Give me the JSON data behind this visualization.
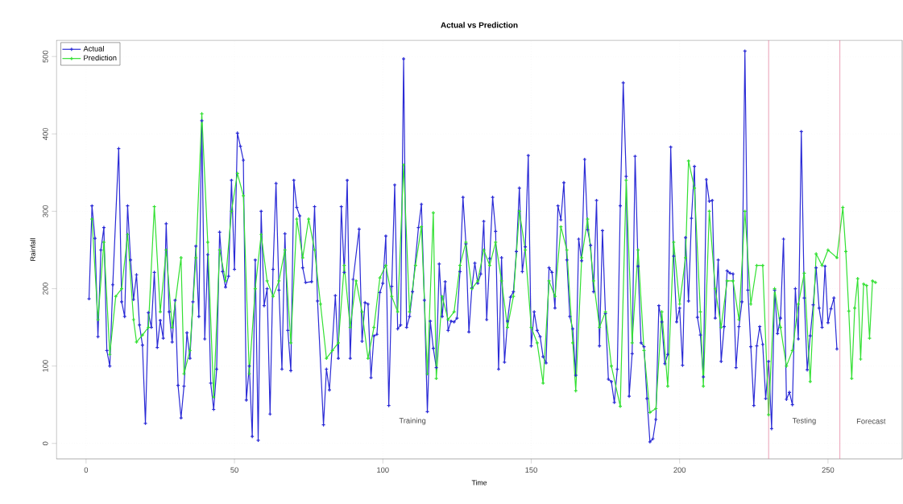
{
  "chart_data": {
    "type": "line",
    "title": "Actual vs Prediction",
    "xlabel": "Time",
    "ylabel": "Rainfall",
    "xlim": [
      -10,
      275
    ],
    "ylim": [
      -20,
      521
    ],
    "xticks": [
      0,
      50,
      100,
      150,
      200,
      250
    ],
    "yticks": [
      0,
      100,
      200,
      300,
      400,
      500
    ],
    "grid": true,
    "legend": "top left",
    "marker": "cross",
    "line_style": "solid",
    "ref_lines": [
      {
        "axis": "x",
        "value": 230,
        "label": null,
        "color": "#e07090"
      },
      {
        "axis": "x",
        "value": 254,
        "label": null,
        "color": "#e07090"
      }
    ],
    "annotations": [
      "Training",
      "Testing",
      "Forecast"
    ],
    "series": [
      {
        "name": "Actual",
        "color": "#2b2bd6",
        "x": [
          1,
          2,
          3,
          4,
          5,
          6,
          7,
          8,
          9,
          11,
          12,
          13,
          14,
          15,
          16,
          17,
          18,
          19,
          20,
          21,
          22,
          23,
          24,
          25,
          26,
          27,
          28,
          29,
          30,
          31,
          32,
          33,
          34,
          35,
          36,
          37,
          38,
          39,
          40,
          41,
          42,
          43,
          44,
          45,
          46,
          47,
          48,
          49,
          50,
          51,
          52,
          53,
          54,
          55,
          56,
          57,
          58,
          59,
          60,
          61,
          62,
          63,
          64,
          65,
          66,
          67,
          68,
          69,
          70,
          71,
          72,
          73,
          74,
          76,
          77,
          78,
          80,
          81,
          82,
          84,
          85,
          86,
          87,
          88,
          89,
          90,
          92,
          93,
          94,
          95,
          96,
          97,
          98,
          99,
          100,
          101,
          102,
          103,
          104,
          105,
          106,
          107,
          108,
          109,
          110,
          112,
          113,
          114,
          115,
          116,
          117,
          118,
          119,
          120,
          121,
          122,
          123,
          124,
          125,
          126,
          127,
          128,
          129,
          130,
          131,
          132,
          133,
          134,
          135,
          136,
          137,
          138,
          139,
          140,
          141,
          142,
          143,
          144,
          145,
          146,
          147,
          148,
          149,
          150,
          151,
          152,
          153,
          154,
          155,
          156,
          157,
          158,
          159,
          160,
          161,
          162,
          163,
          164,
          165,
          166,
          167,
          168,
          169,
          170,
          171,
          172,
          173,
          174,
          175,
          176,
          177,
          178,
          179,
          180,
          181,
          182,
          183,
          184,
          185,
          186,
          187,
          188,
          189,
          190,
          191,
          192,
          193,
          194,
          195,
          196,
          197,
          198,
          199,
          200,
          201,
          202,
          203,
          204,
          205,
          206,
          207,
          208,
          209,
          210,
          211,
          212,
          213,
          214,
          215,
          216,
          217,
          218,
          219,
          220,
          221,
          222,
          223,
          224,
          225,
          226,
          227,
          228,
          229,
          230,
          231,
          232,
          233,
          234,
          235,
          236,
          237,
          238,
          239,
          240,
          241,
          242,
          243,
          244,
          245,
          246,
          247,
          248,
          249,
          250,
          251,
          252,
          253
        ],
        "values": [
          187,
          307,
          265,
          138,
          250,
          279,
          120,
          100,
          205,
          381,
          183,
          164,
          307,
          237,
          186,
          218,
          153,
          127,
          26,
          169,
          150,
          221,
          124,
          159,
          136,
          284,
          170,
          131,
          185,
          75,
          33,
          74,
          143,
          110,
          183,
          255,
          164,
          417,
          135,
          244,
          78,
          44,
          96,
          273,
          222,
          202,
          216,
          340,
          225,
          401,
          384,
          366,
          56,
          100,
          9,
          237,
          4,
          300,
          178,
          200,
          38,
          225,
          336,
          198,
          96,
          271,
          146,
          94,
          340,
          305,
          294,
          227,
          208,
          209,
          306,
          184,
          24,
          96,
          69,
          191,
          110,
          306,
          221,
          340,
          110,
          212,
          277,
          132,
          182,
          180,
          85,
          139,
          141,
          195,
          207,
          268,
          49,
          203,
          334,
          148,
          153,
          497,
          150,
          164,
          196,
          279,
          309,
          185,
          41,
          158,
          123,
          98,
          232,
          164,
          209,
          146,
          158,
          157,
          162,
          222,
          318,
          258,
          144,
          201,
          233,
          207,
          219,
          287,
          160,
          239,
          318,
          274,
          96,
          240,
          105,
          158,
          189,
          196,
          248,
          330,
          222,
          254,
          372,
          126,
          170,
          146,
          138,
          112,
          104,
          227,
          221,
          175,
          307,
          289,
          337,
          237,
          164,
          148,
          88,
          264,
          236,
          367,
          276,
          256,
          196,
          314,
          126,
          275,
          168,
          83,
          80,
          53,
          96,
          307,
          466,
          345,
          61,
          116,
          371,
          229,
          130,
          125,
          58,
          2,
          6,
          31,
          178,
          157,
          103,
          115,
          383,
          242,
          157,
          175,
          101,
          266,
          184,
          291,
          358,
          163,
          140,
          86,
          341,
          313,
          314,
          162,
          237,
          106,
          151,
          223,
          220,
          219,
          98,
          151,
          183,
          507,
          198,
          125,
          49,
          126,
          151,
          128,
          58,
          106,
          19,
          198,
          142,
          162,
          264,
          57,
          66,
          50,
          200,
          135,
          403,
          188,
          95,
          139,
          179,
          227,
          175,
          150,
          229,
          156,
          174,
          188,
          122
        ]
      },
      {
        "name": "Prediction",
        "color": "#33e033",
        "x": [
          2,
          4,
          6,
          8,
          10,
          12,
          14,
          16,
          17,
          19,
          21,
          23,
          25,
          27,
          29,
          32,
          33,
          35,
          37,
          39,
          41,
          43,
          45,
          47,
          49,
          51,
          53,
          55,
          57,
          59,
          61,
          63,
          65,
          67,
          69,
          71,
          73,
          75,
          77,
          79,
          81,
          83,
          85,
          87,
          89,
          91,
          93,
          95,
          97,
          99,
          101,
          103,
          105,
          107,
          109,
          111,
          113,
          115,
          117,
          118,
          120,
          122,
          124,
          126,
          128,
          130,
          132,
          134,
          136,
          138,
          140,
          142,
          144,
          146,
          148,
          150,
          152,
          154,
          156,
          158,
          160,
          162,
          164,
          165,
          167,
          169,
          171,
          173,
          175,
          177,
          180,
          182,
          184,
          186,
          188,
          190,
          192,
          194,
          196,
          198,
          200,
          202,
          203,
          205,
          207,
          208,
          210,
          212,
          214,
          216,
          218,
          220,
          222,
          224,
          226,
          228,
          230,
          232,
          234,
          236,
          238,
          240,
          242,
          244,
          246,
          248,
          250,
          253,
          255,
          256,
          257,
          258,
          259,
          260,
          261,
          262,
          263,
          264,
          265,
          266
        ],
        "values": [
          290,
          160,
          260,
          115,
          190,
          200,
          270,
          160,
          131,
          140,
          150,
          306,
          170,
          250,
          150,
          240,
          90,
          120,
          240,
          426,
          260,
          60,
          250,
          210,
          300,
          349,
          320,
          90,
          200,
          270,
          210,
          190,
          210,
          250,
          130,
          290,
          240,
          290,
          250,
          180,
          110,
          120,
          130,
          230,
          150,
          210,
          170,
          110,
          150,
          214,
          230,
          190,
          170,
          360,
          170,
          230,
          280,
          90,
          298,
          84,
          190,
          160,
          170,
          230,
          260,
          200,
          210,
          250,
          230,
          260,
          210,
          150,
          190,
          300,
          250,
          150,
          130,
          78,
          210,
          190,
          280,
          250,
          130,
          68,
          240,
          290,
          210,
          150,
          170,
          100,
          48,
          340,
          130,
          250,
          120,
          40,
          45,
          170,
          74,
          260,
          180,
          240,
          365,
          330,
          170,
          74,
          300,
          200,
          150,
          210,
          210,
          160,
          300,
          180,
          230,
          230,
          37,
          200,
          150,
          100,
          120,
          180,
          220,
          80,
          245,
          230,
          250,
          240,
          305,
          248,
          171,
          84,
          175,
          213,
          109,
          206,
          204,
          136,
          210,
          208
        ]
      }
    ]
  }
}
